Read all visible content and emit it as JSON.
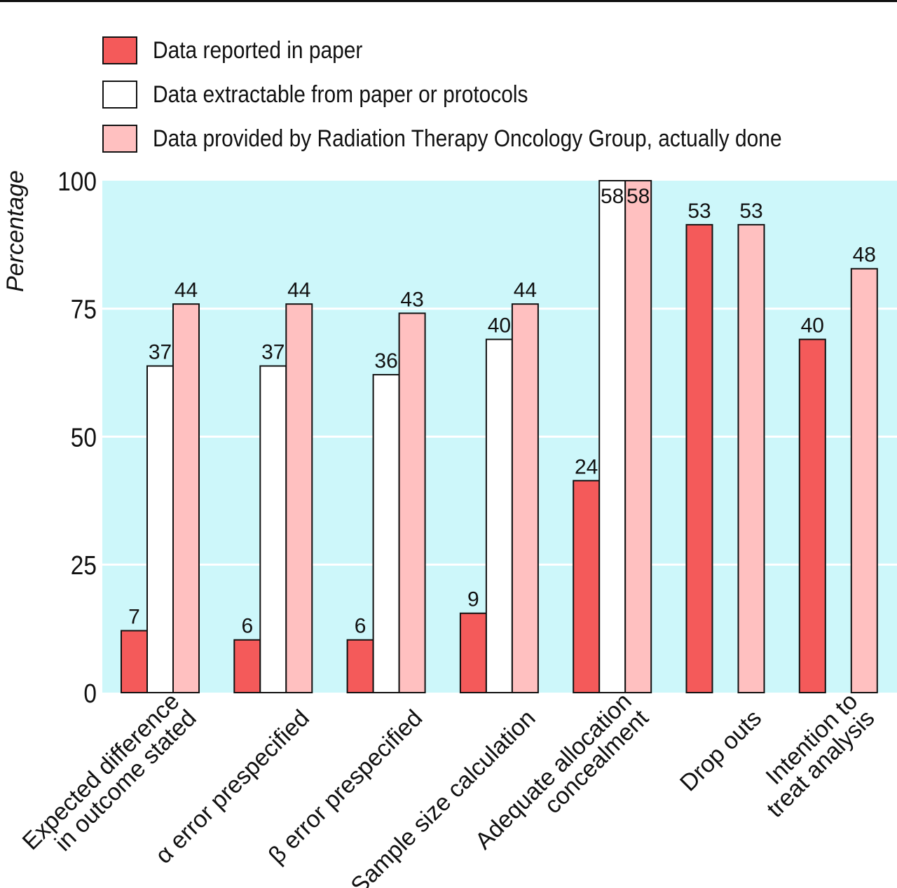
{
  "chart_data": {
    "type": "bar",
    "ylabel": "Percentage",
    "ylim": [
      0,
      100
    ],
    "yticks": [
      0,
      25,
      50,
      75,
      100
    ],
    "grid": true,
    "legend_position": "top",
    "colors": {
      "plot_background": "#cdf7fa",
      "grid": "#ffffff"
    },
    "categories": [
      [
        "Expected difference",
        "in outcome stated"
      ],
      [
        "α error prespecified"
      ],
      [
        "β error prespecified"
      ],
      [
        "Sample size calculation"
      ],
      [
        "Adequate allocation",
        "concealment"
      ],
      [
        "Drop outs"
      ],
      [
        "Intention to",
        "treat analysis"
      ]
    ],
    "series": [
      {
        "name": "Data reported in paper",
        "color": "#f45a5a",
        "values": [
          12.1,
          10.3,
          10.3,
          15.5,
          41.4,
          91.4,
          69.0
        ],
        "labels": [
          "7",
          "6",
          "6",
          "9",
          "24",
          "53",
          "40"
        ]
      },
      {
        "name": "Data extractable from paper or protocols",
        "color": "#ffffff",
        "values": [
          63.8,
          63.8,
          62.1,
          69.0,
          100,
          null,
          null
        ],
        "labels": [
          "37",
          "37",
          "36",
          "40",
          "58",
          null,
          null
        ]
      },
      {
        "name": "Data provided by Radiation Therapy Oncology Group, actually done",
        "color": "#ffc0c0",
        "values": [
          75.9,
          75.9,
          74.1,
          75.9,
          100,
          91.4,
          82.8
        ],
        "labels": [
          "44",
          "44",
          "43",
          "44",
          "58",
          "53",
          "48"
        ]
      }
    ]
  }
}
